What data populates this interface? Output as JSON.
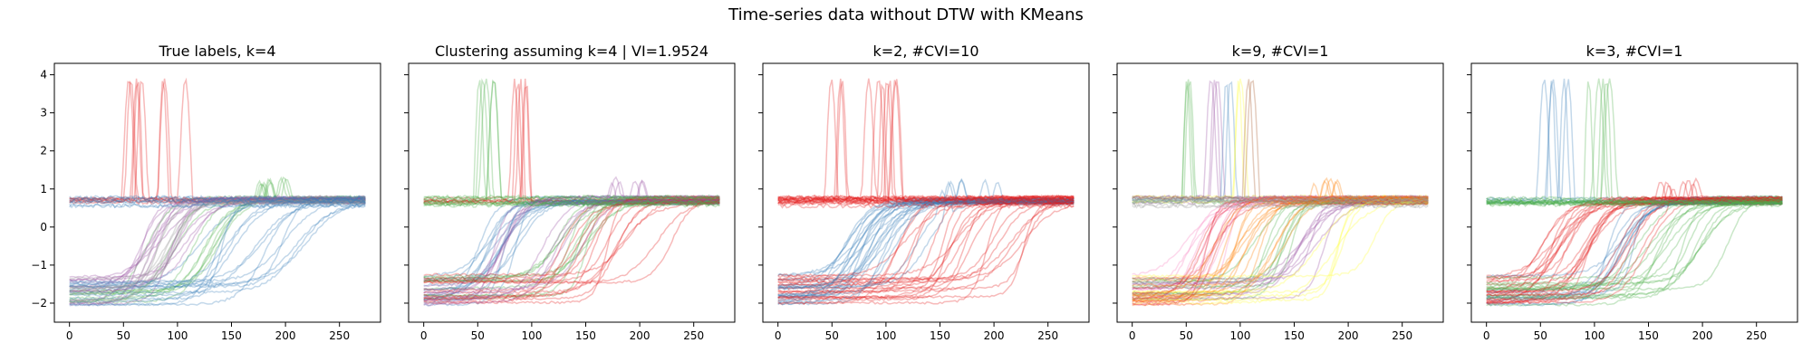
{
  "figure": {
    "suptitle": "Time-series data without DTW with KMeans"
  },
  "colors": {
    "red": "#e41a1c",
    "blue": "#377eb8",
    "green": "#4daf4a",
    "purple": "#984ea3",
    "orange": "#ff7f00",
    "yellow": "#ffff33",
    "brown": "#a65628",
    "pink": "#f781bf",
    "gray": "#999999"
  },
  "chart_data": [
    {
      "type": "line",
      "title": "True labels, k=4",
      "xlim": [
        -14,
        288
      ],
      "ylim": [
        -2.5,
        4.3
      ],
      "xticks": [
        0,
        50,
        100,
        150,
        200,
        250
      ],
      "yticks": [
        -2,
        -1,
        0,
        1,
        2,
        3,
        4
      ],
      "legend": "none",
      "grid": false,
      "groups": [
        {
          "color": "red",
          "kind": "spike",
          "count": 8,
          "spike_range": [
            48,
            110
          ]
        },
        {
          "color": "green",
          "kind": "high_bump",
          "count": 10,
          "bump_range": [
            175,
            205
          ]
        },
        {
          "color": "purple",
          "kind": "low_rise",
          "count": 14,
          "rise_range": [
            60,
            115
          ]
        },
        {
          "color": "blue",
          "kind": "low_rise",
          "count": 14,
          "rise_range": [
            115,
            230
          ]
        },
        {
          "color": "gray",
          "kind": "low_rise",
          "count": 8,
          "rise_range": [
            70,
            100
          ]
        },
        {
          "color": "blue",
          "kind": "flat_high",
          "count": 8
        }
      ]
    },
    {
      "type": "line",
      "title": "Clustering assuming k=4 | VI=1.9524",
      "xlim": [
        -14,
        288
      ],
      "ylim": [
        -2.5,
        4.3
      ],
      "xticks": [
        0,
        50,
        100,
        150,
        200,
        250
      ],
      "yticks": [
        -2,
        -1,
        0,
        1,
        2,
        3,
        4
      ],
      "legend": "none",
      "grid": false,
      "groups": [
        {
          "color": "green",
          "kind": "spike",
          "count": 5,
          "spike_range": [
            48,
            75
          ]
        },
        {
          "color": "red",
          "kind": "spike",
          "count": 5,
          "spike_range": [
            78,
            110
          ]
        },
        {
          "color": "blue",
          "kind": "low_rise",
          "count": 14,
          "rise_range": [
            50,
            90
          ]
        },
        {
          "color": "purple",
          "kind": "low_rise",
          "count": 5,
          "rise_range": [
            60,
            80
          ]
        },
        {
          "color": "green",
          "kind": "low_rise",
          "count": 10,
          "rise_range": [
            110,
            160
          ]
        },
        {
          "color": "red",
          "kind": "low_rise",
          "count": 14,
          "rise_range": [
            120,
            230
          ]
        },
        {
          "color": "purple",
          "kind": "high_bump",
          "count": 6,
          "bump_range": [
            170,
            205
          ]
        },
        {
          "color": "green",
          "kind": "flat_high",
          "count": 8
        }
      ]
    },
    {
      "type": "line",
      "title": "k=2, #CVI=10",
      "xlim": [
        -14,
        288
      ],
      "ylim": [
        -2.5,
        4.3
      ],
      "xticks": [
        0,
        50,
        100,
        150,
        200,
        250
      ],
      "yticks": [
        -2,
        -1,
        0,
        1,
        2,
        3,
        4
      ],
      "legend": "none",
      "grid": false,
      "groups": [
        {
          "color": "red",
          "kind": "spike",
          "count": 10,
          "spike_range": [
            48,
            110
          ]
        },
        {
          "color": "blue",
          "kind": "low_rise",
          "count": 16,
          "rise_range": [
            50,
            100
          ]
        },
        {
          "color": "red",
          "kind": "low_rise",
          "count": 22,
          "rise_range": [
            100,
            230
          ]
        },
        {
          "color": "blue",
          "kind": "high_bump",
          "count": 8,
          "bump_range": [
            150,
            205
          ]
        },
        {
          "color": "red",
          "kind": "flat_high",
          "count": 8
        }
      ]
    },
    {
      "type": "line",
      "title": "k=9, #CVI=1",
      "xlim": [
        -14,
        288
      ],
      "ylim": [
        -2.5,
        4.3
      ],
      "xticks": [
        0,
        50,
        100,
        150,
        200,
        250
      ],
      "yticks": [
        -2,
        -1,
        0,
        1,
        2,
        3,
        4
      ],
      "legend": "none",
      "grid": false,
      "groups": [
        {
          "color": "green",
          "kind": "spike",
          "count": 3,
          "spike_range": [
            50,
            60
          ]
        },
        {
          "color": "purple",
          "kind": "spike",
          "count": 3,
          "spike_range": [
            68,
            80
          ]
        },
        {
          "color": "blue",
          "kind": "spike",
          "count": 2,
          "spike_range": [
            84,
            92
          ]
        },
        {
          "color": "yellow",
          "kind": "spike",
          "count": 2,
          "spike_range": [
            95,
            103
          ]
        },
        {
          "color": "brown",
          "kind": "spike",
          "count": 2,
          "spike_range": [
            106,
            114
          ]
        },
        {
          "color": "pink",
          "kind": "low_rise",
          "count": 10,
          "rise_range": [
            50,
            90
          ]
        },
        {
          "color": "orange",
          "kind": "low_rise",
          "count": 8,
          "rise_range": [
            85,
            120
          ]
        },
        {
          "color": "green",
          "kind": "low_rise",
          "count": 8,
          "rise_range": [
            110,
            150
          ]
        },
        {
          "color": "purple",
          "kind": "low_rise",
          "count": 8,
          "rise_range": [
            140,
            180
          ]
        },
        {
          "color": "yellow",
          "kind": "low_rise",
          "count": 6,
          "rise_range": [
            170,
            230
          ]
        },
        {
          "color": "red",
          "kind": "low_rise",
          "count": 6,
          "rise_range": [
            60,
            80
          ]
        },
        {
          "color": "orange",
          "kind": "high_bump",
          "count": 6,
          "bump_range": [
            165,
            205
          ]
        },
        {
          "color": "gray",
          "kind": "flat_high",
          "count": 8
        }
      ]
    },
    {
      "type": "line",
      "title": "k=3, #CVI=1",
      "xlim": [
        -14,
        288
      ],
      "ylim": [
        -2.5,
        4.3
      ],
      "xticks": [
        0,
        50,
        100,
        150,
        200,
        250
      ],
      "yticks": [
        -2,
        -1,
        0,
        1,
        2,
        3,
        4
      ],
      "legend": "none",
      "grid": false,
      "groups": [
        {
          "color": "blue",
          "kind": "spike",
          "count": 5,
          "spike_range": [
            48,
            80
          ]
        },
        {
          "color": "green",
          "kind": "spike",
          "count": 5,
          "spike_range": [
            82,
            115
          ]
        },
        {
          "color": "red",
          "kind": "low_rise",
          "count": 18,
          "rise_range": [
            50,
            100
          ]
        },
        {
          "color": "blue",
          "kind": "low_rise",
          "count": 10,
          "rise_range": [
            100,
            150
          ]
        },
        {
          "color": "green",
          "kind": "low_rise",
          "count": 14,
          "rise_range": [
            140,
            230
          ]
        },
        {
          "color": "red",
          "kind": "high_bump",
          "count": 8,
          "bump_range": [
            160,
            205
          ]
        },
        {
          "color": "green",
          "kind": "flat_high",
          "count": 8
        }
      ]
    }
  ]
}
